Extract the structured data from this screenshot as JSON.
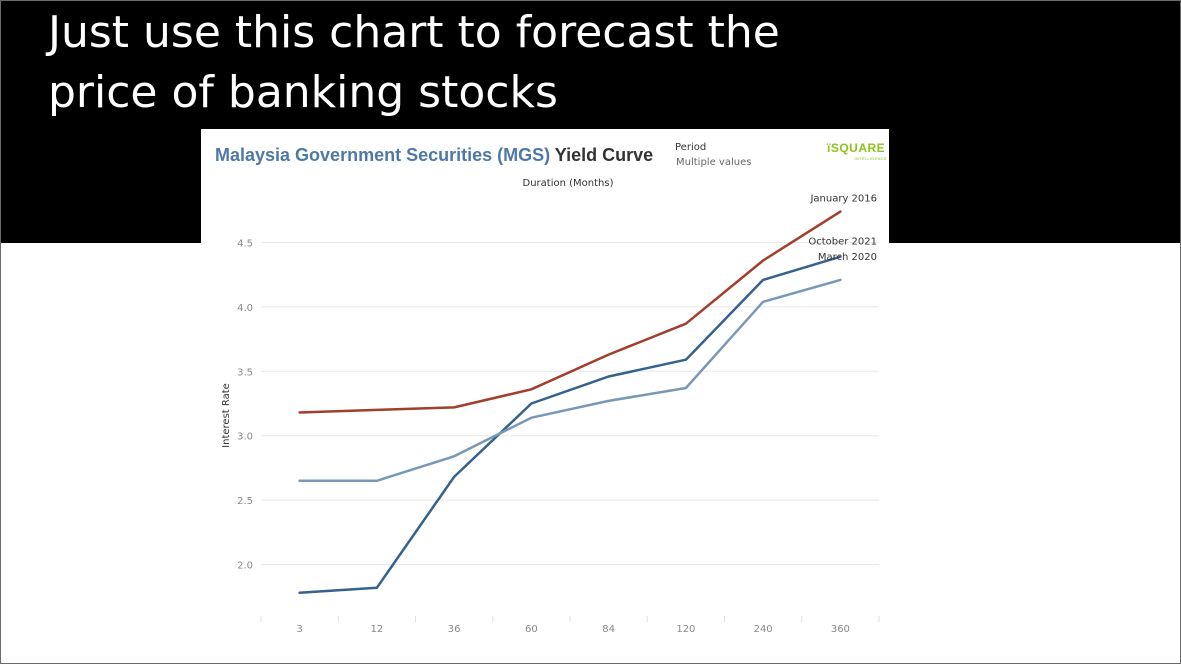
{
  "slide": {
    "headline_line1": "Just use this chart to forecast the",
    "headline_line2": "price of banking stocks"
  },
  "colors": {
    "banner": "#000000",
    "title_blue": "#4e79a7",
    "logo_green": "#8dc21f"
  },
  "card": {
    "title_main": "Malaysia Government Securities (MGS) ",
    "title_suffix": "Yield Curve",
    "filter_label": "Period",
    "filter_value": "Multiple values",
    "logo_text": "SQUARE",
    "logo_sub": "INTELLIGENCE"
  },
  "chart_data": {
    "type": "line",
    "title": "Malaysia Government Securities (MGS) Yield Curve",
    "xlabel": "Duration (Months)",
    "ylabel": "Interest Rate",
    "categories": [
      "3",
      "12",
      "36",
      "60",
      "84",
      "120",
      "240",
      "360"
    ],
    "ylim": [
      1.6,
      4.9
    ],
    "yticks": [
      "2.0",
      "2.5",
      "3.0",
      "3.5",
      "4.0",
      "4.5"
    ],
    "grid": true,
    "legend": "labels at line ends",
    "series": [
      {
        "name": "January 2016",
        "color": "#a23e2a",
        "values": [
          3.18,
          3.2,
          3.22,
          3.36,
          3.63,
          3.87,
          4.36,
          4.74
        ]
      },
      {
        "name": "October 2021",
        "color": "#35618f",
        "values": [
          1.78,
          1.82,
          2.68,
          3.25,
          3.46,
          3.59,
          4.21,
          4.39
        ]
      },
      {
        "name": "March 2020",
        "color": "#7798b6",
        "values": [
          2.65,
          2.65,
          2.84,
          3.14,
          3.27,
          3.37,
          4.04,
          4.21
        ]
      }
    ]
  }
}
